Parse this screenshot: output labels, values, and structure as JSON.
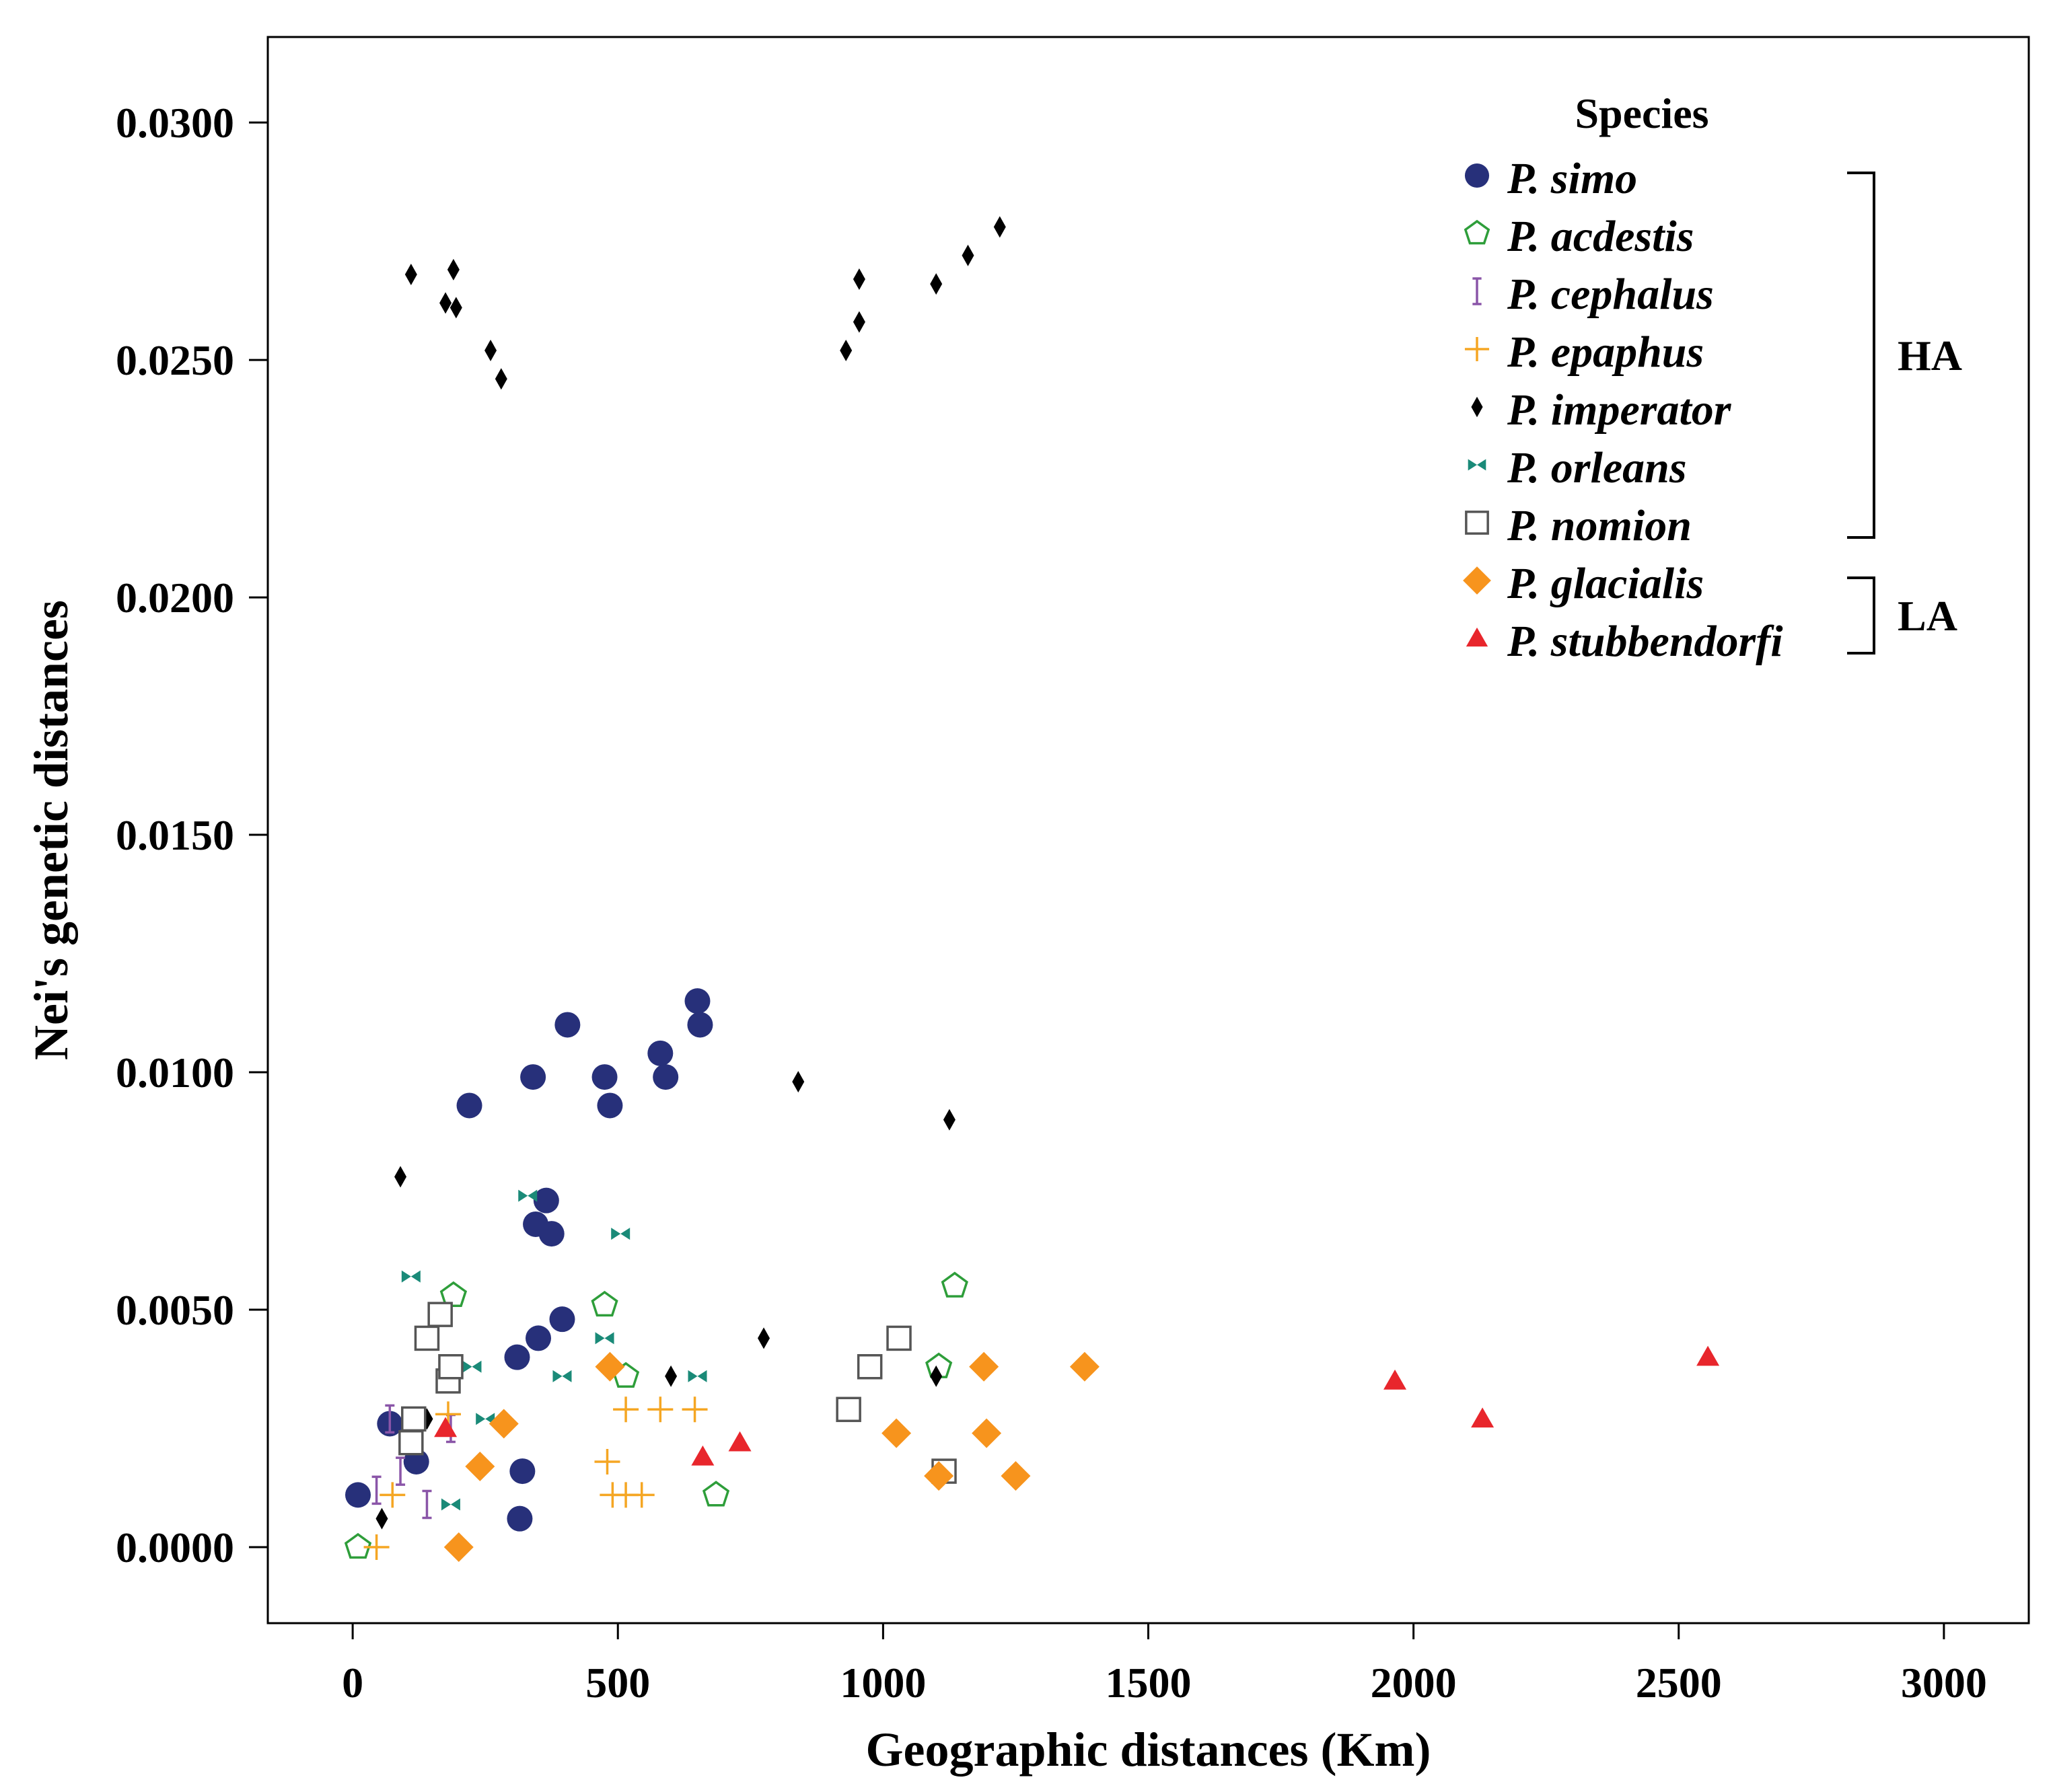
{
  "chart_data": {
    "type": "scatter",
    "xlabel": "Geographic distances (Km)",
    "ylabel": "Nei's genetic distances",
    "xlim": [
      -160,
      3160
    ],
    "ylim": [
      -0.0016,
      0.0318
    ],
    "x_ticks": [
      0,
      500,
      1000,
      1500,
      2000,
      2500,
      3000
    ],
    "x_tick_labels": [
      "0",
      "500",
      "1000",
      "1500",
      "2000",
      "2500",
      "3000"
    ],
    "y_ticks": [
      0.0,
      0.005,
      0.01,
      0.015,
      0.02,
      0.025,
      0.03
    ],
    "y_tick_labels": [
      "0.0000",
      "0.0050",
      "0.0100",
      "0.0150",
      "0.0200",
      "0.0250",
      "0.0300"
    ],
    "grid": false,
    "legend": {
      "title": "Species",
      "position": "top-right",
      "groups": [
        {
          "label": "HA",
          "first": 0,
          "last": 6
        },
        {
          "label": "LA",
          "first": 7,
          "last": 8
        }
      ]
    },
    "series": [
      {
        "name": "P. simo",
        "marker": "circle",
        "color": "#27307a",
        "points": [
          [
            10,
            0.0011
          ],
          [
            70,
            0.0026
          ],
          [
            120,
            0.0018
          ],
          [
            220,
            0.0093
          ],
          [
            310,
            0.004
          ],
          [
            315,
            0.0006
          ],
          [
            320,
            0.0016
          ],
          [
            340,
            0.0099
          ],
          [
            345,
            0.0068
          ],
          [
            350,
            0.0044
          ],
          [
            365,
            0.0073
          ],
          [
            375,
            0.0066
          ],
          [
            395,
            0.0048
          ],
          [
            405,
            0.011
          ],
          [
            475,
            0.0099
          ],
          [
            485,
            0.0093
          ],
          [
            580,
            0.0104
          ],
          [
            590,
            0.0099
          ],
          [
            650,
            0.0115
          ],
          [
            655,
            0.011
          ]
        ]
      },
      {
        "name": "P. acdestis",
        "marker": "pentagon-open",
        "color": "#2e9e3a",
        "points": [
          [
            10,
            0.0
          ],
          [
            190,
            0.0053
          ],
          [
            475,
            0.0051
          ],
          [
            515,
            0.0036
          ],
          [
            685,
            0.0011
          ],
          [
            1105,
            0.0038
          ],
          [
            1135,
            0.0055
          ]
        ]
      },
      {
        "name": "P. cephalus",
        "marker": "ibeam",
        "color": "#8a55a8",
        "points": [
          [
            45,
            0.0012
          ],
          [
            70,
            0.0027
          ],
          [
            90,
            0.0016
          ],
          [
            140,
            0.0009
          ],
          [
            185,
            0.0025
          ]
        ]
      },
      {
        "name": "P. epaphus",
        "marker": "plus",
        "color": "#f5a623",
        "points": [
          [
            45,
            0.0
          ],
          [
            75,
            0.0011
          ],
          [
            180,
            0.0028
          ],
          [
            480,
            0.0018
          ],
          [
            490,
            0.0011
          ],
          [
            515,
            0.0029
          ],
          [
            515,
            0.0011
          ],
          [
            545,
            0.0011
          ],
          [
            580,
            0.0029
          ],
          [
            645,
            0.0029
          ]
        ]
      },
      {
        "name": "P. imperator",
        "marker": "diamond-thin",
        "color": "#000000",
        "points": [
          [
            55,
            0.0006
          ],
          [
            90,
            0.0078
          ],
          [
            110,
            0.0268
          ],
          [
            140,
            0.0027
          ],
          [
            175,
            0.0262
          ],
          [
            190,
            0.0269
          ],
          [
            195,
            0.0261
          ],
          [
            260,
            0.0252
          ],
          [
            280,
            0.0246
          ],
          [
            600,
            0.0036
          ],
          [
            775,
            0.0044
          ],
          [
            840,
            0.0098
          ],
          [
            930,
            0.0252
          ],
          [
            955,
            0.0267
          ],
          [
            955,
            0.0258
          ],
          [
            1100,
            0.0266
          ],
          [
            1100,
            0.0036
          ],
          [
            1125,
            0.009
          ],
          [
            1160,
            0.0272
          ],
          [
            1220,
            0.0278
          ]
        ]
      },
      {
        "name": "P. orleans",
        "marker": "bowtie",
        "color": "#1a8a78",
        "points": [
          [
            110,
            0.0057
          ],
          [
            185,
            0.0009
          ],
          [
            225,
            0.0038
          ],
          [
            250,
            0.0027
          ],
          [
            330,
            0.0074
          ],
          [
            395,
            0.0036
          ],
          [
            475,
            0.0044
          ],
          [
            505,
            0.0066
          ],
          [
            650,
            0.0036
          ]
        ]
      },
      {
        "name": "P. nomion",
        "marker": "square-open",
        "color": "#555555",
        "points": [
          [
            110,
            0.0022
          ],
          [
            115,
            0.0027
          ],
          [
            140,
            0.0044
          ],
          [
            165,
            0.0049
          ],
          [
            180,
            0.0035
          ],
          [
            185,
            0.0038
          ],
          [
            935,
            0.0029
          ],
          [
            975,
            0.0038
          ],
          [
            1030,
            0.0044
          ],
          [
            1115,
            0.0016
          ]
        ]
      },
      {
        "name": "P. glacialis",
        "marker": "diamond",
        "color": "#f7941d",
        "points": [
          [
            200,
            0.0
          ],
          [
            240,
            0.0017
          ],
          [
            285,
            0.0026
          ],
          [
            485,
            0.0038
          ],
          [
            1025,
            0.0024
          ],
          [
            1105,
            0.0015
          ],
          [
            1190,
            0.0038
          ],
          [
            1195,
            0.0024
          ],
          [
            1250,
            0.0015
          ],
          [
            1380,
            0.0038
          ]
        ]
      },
      {
        "name": "P. stubbendorfi",
        "marker": "triangle",
        "color": "#e8262c",
        "points": [
          [
            175,
            0.0025
          ],
          [
            660,
            0.0019
          ],
          [
            730,
            0.0022
          ],
          [
            1965,
            0.0035
          ],
          [
            2130,
            0.0027
          ],
          [
            2555,
            0.004
          ]
        ]
      }
    ]
  }
}
